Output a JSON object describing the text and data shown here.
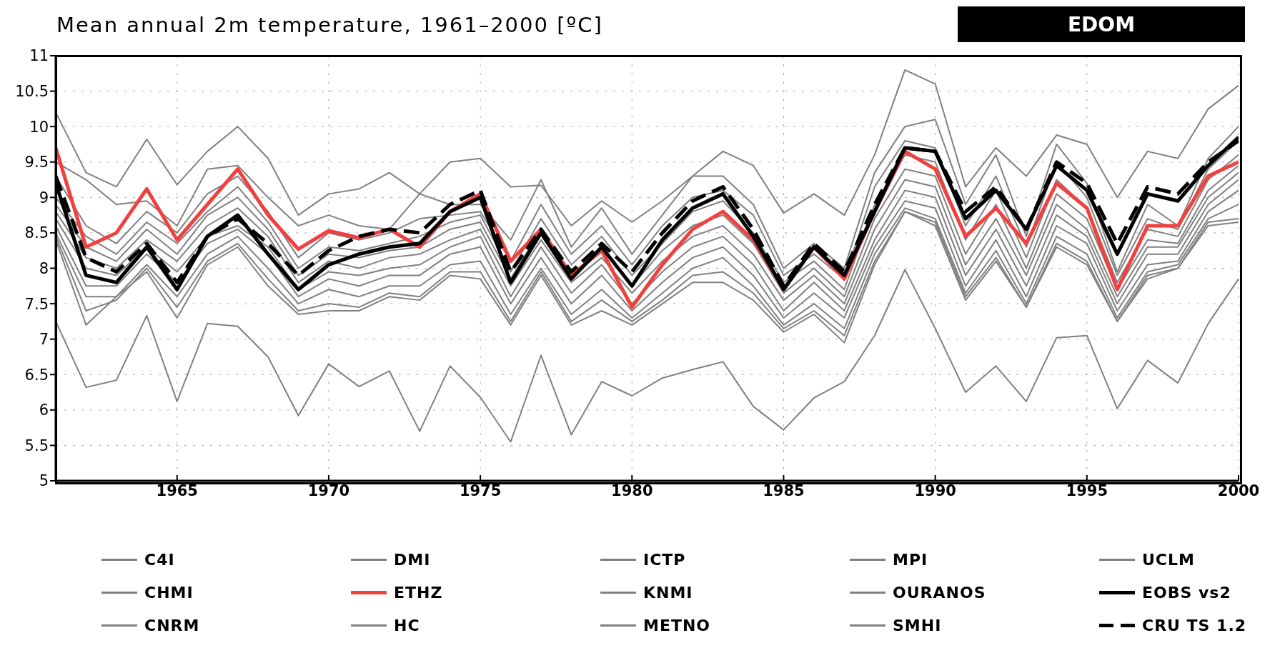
{
  "chart_data": {
    "type": "line",
    "title": "Mean annual 2m temperature, 1961–2000 [ºC]",
    "subtitle": "EDOM",
    "x": [
      1961,
      1962,
      1963,
      1964,
      1965,
      1966,
      1967,
      1968,
      1969,
      1970,
      1971,
      1972,
      1973,
      1974,
      1975,
      1976,
      1977,
      1978,
      1979,
      1980,
      1981,
      1982,
      1983,
      1984,
      1985,
      1986,
      1987,
      1988,
      1989,
      1990,
      1991,
      1992,
      1993,
      1994,
      1995,
      1996,
      1997,
      1998,
      1999,
      2000
    ],
    "xlim": [
      1961,
      2000
    ],
    "xticks": [
      1965,
      1970,
      1975,
      1980,
      1985,
      1990,
      1995,
      2000
    ],
    "ylim": [
      5,
      11
    ],
    "yticks": [
      5,
      5.5,
      6,
      6.5,
      7,
      7.5,
      8,
      8.5,
      9,
      9.5,
      10,
      10.5,
      11
    ],
    "grid": true,
    "legend": "bottom",
    "line_style": "solid",
    "marker": "none",
    "series": [
      {
        "name": "C4I",
        "color": "#808080",
        "values": [
          10.2,
          9.35,
          9.15,
          9.82,
          9.18,
          9.65,
          10.0,
          9.55,
          8.75,
          9.05,
          9.12,
          9.35,
          9.05,
          9.5,
          9.55,
          9.15,
          9.17,
          8.6,
          8.95,
          8.65,
          8.95,
          9.3,
          9.65,
          9.45,
          8.78,
          9.05,
          8.75,
          9.6,
          10.8,
          10.6,
          9.15,
          9.7,
          9.3,
          9.88,
          9.75,
          9.0,
          9.65,
          9.55,
          10.25,
          10.58
        ]
      },
      {
        "name": "DMI",
        "color": "#808080",
        "values": [
          9.5,
          9.25,
          8.9,
          8.95,
          8.6,
          9.4,
          9.45,
          9.0,
          8.6,
          8.75,
          8.6,
          8.55,
          9.05,
          8.9,
          8.9,
          8.4,
          9.25,
          8.3,
          8.85,
          8.2,
          8.75,
          9.3,
          9.3,
          8.9,
          8.0,
          8.35,
          8.0,
          9.35,
          10.0,
          10.1,
          8.9,
          9.6,
          8.45,
          9.75,
          9.2,
          7.95,
          8.9,
          8.6,
          9.55,
          10.0
        ]
      },
      {
        "name": "ICTP",
        "color": "#808080",
        "values": [
          9.3,
          8.6,
          8.35,
          8.8,
          8.5,
          9.05,
          9.3,
          8.8,
          8.15,
          8.5,
          8.4,
          8.5,
          8.7,
          8.75,
          8.8,
          8.1,
          8.9,
          8.2,
          8.6,
          8.05,
          8.6,
          9.0,
          9.1,
          8.75,
          7.9,
          8.2,
          7.85,
          9.15,
          9.8,
          9.7,
          8.6,
          9.3,
          8.3,
          9.5,
          9.0,
          7.9,
          8.7,
          8.55,
          9.4,
          9.8
        ]
      },
      {
        "name": "MPI",
        "color": "#808080",
        "values": [
          9.0,
          8.45,
          8.2,
          8.65,
          8.35,
          8.8,
          9.15,
          8.65,
          8.0,
          8.3,
          8.25,
          8.35,
          8.45,
          8.65,
          8.75,
          7.95,
          8.7,
          8.05,
          8.45,
          7.9,
          8.35,
          8.8,
          8.95,
          8.5,
          7.8,
          8.1,
          7.7,
          8.9,
          9.6,
          9.5,
          8.4,
          9.1,
          8.15,
          9.25,
          8.85,
          7.8,
          8.55,
          8.45,
          9.25,
          9.6
        ]
      },
      {
        "name": "UCLM",
        "color": "#808080",
        "values": [
          8.9,
          8.3,
          8.1,
          8.55,
          8.2,
          8.75,
          9.0,
          8.55,
          7.9,
          8.2,
          8.15,
          8.25,
          8.3,
          8.55,
          8.65,
          7.85,
          8.55,
          7.9,
          8.3,
          7.75,
          8.25,
          8.6,
          8.75,
          8.35,
          7.65,
          8.0,
          7.6,
          8.7,
          9.4,
          9.3,
          8.2,
          8.9,
          8.0,
          9.05,
          8.7,
          7.7,
          8.4,
          8.35,
          9.1,
          9.45
        ]
      },
      {
        "name": "CHMI",
        "color": "#808080",
        "values": [
          8.8,
          8.15,
          8.0,
          8.4,
          8.1,
          8.6,
          8.85,
          8.45,
          7.8,
          8.1,
          8.0,
          8.15,
          8.2,
          8.4,
          8.55,
          7.75,
          8.4,
          7.8,
          8.15,
          7.65,
          8.1,
          8.45,
          8.6,
          8.2,
          7.55,
          7.9,
          7.5,
          8.55,
          9.25,
          9.15,
          8.05,
          8.7,
          7.9,
          8.9,
          8.55,
          7.6,
          8.3,
          8.3,
          9.0,
          9.35
        ]
      },
      {
        "name": "ETHZ",
        "color": "#f04040",
        "values": [
          9.7,
          8.3,
          8.5,
          9.12,
          8.4,
          8.9,
          9.4,
          8.75,
          8.27,
          8.53,
          8.43,
          8.55,
          8.3,
          8.8,
          9.05,
          8.1,
          8.55,
          7.9,
          8.25,
          7.45,
          8.05,
          8.55,
          8.8,
          8.4,
          7.7,
          8.3,
          7.85,
          8.8,
          9.65,
          9.4,
          8.45,
          8.85,
          8.35,
          9.2,
          8.85,
          7.7,
          8.6,
          8.6,
          9.3,
          9.5
        ]
      },
      {
        "name": "KNMI",
        "color": "#808080",
        "values": [
          8.7,
          8.0,
          7.9,
          8.3,
          7.95,
          8.45,
          8.6,
          8.3,
          7.7,
          7.95,
          7.9,
          8.0,
          8.05,
          8.3,
          8.45,
          7.6,
          8.3,
          7.65,
          8.05,
          7.5,
          7.95,
          8.3,
          8.45,
          8.05,
          7.4,
          7.8,
          7.4,
          8.4,
          9.1,
          9.0,
          7.9,
          8.55,
          7.75,
          8.75,
          8.45,
          7.5,
          8.2,
          8.2,
          8.9,
          9.25
        ]
      },
      {
        "name": "OURANOS",
        "color": "#808080",
        "values": [
          8.6,
          7.75,
          7.75,
          8.2,
          7.8,
          8.35,
          8.55,
          8.2,
          7.6,
          7.85,
          7.75,
          7.9,
          7.9,
          8.2,
          8.3,
          7.5,
          8.15,
          7.5,
          7.9,
          7.4,
          7.8,
          8.15,
          8.3,
          7.9,
          7.3,
          7.65,
          7.3,
          8.3,
          8.95,
          8.85,
          7.75,
          8.4,
          7.6,
          8.6,
          8.35,
          7.4,
          8.05,
          8.1,
          8.8,
          9.1
        ]
      },
      {
        "name": "EOBS vs2",
        "color": "#000000",
        "values": [
          9.2,
          7.9,
          7.8,
          8.3,
          7.7,
          8.45,
          8.75,
          8.2,
          7.7,
          8.05,
          8.2,
          8.3,
          8.35,
          8.8,
          9.0,
          7.8,
          8.5,
          7.85,
          8.3,
          7.75,
          8.4,
          8.85,
          9.05,
          8.45,
          7.7,
          8.3,
          7.9,
          8.8,
          9.7,
          9.65,
          8.7,
          9.1,
          8.55,
          9.45,
          9.1,
          8.2,
          9.05,
          8.95,
          9.45,
          9.85
        ]
      },
      {
        "name": "CNRM",
        "color": "#808080",
        "values": [
          8.5,
          7.6,
          7.6,
          8.05,
          7.6,
          8.2,
          8.45,
          8.0,
          7.5,
          7.7,
          7.6,
          7.75,
          7.75,
          8.05,
          8.1,
          7.35,
          8.0,
          7.35,
          7.7,
          7.3,
          7.65,
          8.0,
          8.15,
          7.75,
          7.2,
          7.5,
          7.15,
          8.2,
          8.85,
          8.7,
          7.65,
          8.25,
          7.5,
          8.45,
          8.2,
          7.3,
          7.95,
          8.05,
          8.7,
          8.9
        ]
      },
      {
        "name": "HC",
        "color": "#808080",
        "values": [
          8.45,
          7.4,
          7.55,
          8.0,
          7.45,
          8.1,
          8.35,
          7.85,
          7.4,
          7.5,
          7.45,
          7.65,
          7.6,
          7.95,
          7.95,
          7.25,
          7.95,
          7.25,
          7.55,
          7.25,
          7.55,
          7.9,
          7.95,
          7.65,
          7.15,
          7.4,
          7.05,
          8.1,
          8.8,
          8.65,
          7.6,
          8.15,
          7.45,
          8.35,
          8.1,
          7.25,
          7.9,
          8.0,
          8.65,
          8.7
        ]
      },
      {
        "name": "METNO",
        "color": "#808080",
        "values": [
          7.25,
          6.32,
          6.42,
          7.33,
          6.12,
          7.22,
          7.18,
          6.75,
          5.92,
          6.65,
          6.33,
          6.55,
          5.7,
          6.62,
          6.18,
          5.55,
          6.77,
          5.65,
          6.4,
          6.2,
          6.45,
          6.57,
          6.68,
          6.05,
          5.72,
          6.17,
          6.4,
          7.05,
          7.98,
          7.15,
          6.25,
          6.62,
          6.12,
          7.02,
          7.05,
          6.02,
          6.7,
          6.38,
          7.22,
          7.85
        ]
      },
      {
        "name": "SMHI",
        "color": "#808080",
        "values": [
          8.4,
          7.2,
          7.6,
          7.95,
          7.3,
          8.05,
          8.3,
          7.75,
          7.35,
          7.4,
          7.4,
          7.6,
          7.55,
          7.9,
          7.85,
          7.2,
          7.9,
          7.2,
          7.4,
          7.2,
          7.5,
          7.8,
          7.8,
          7.55,
          7.1,
          7.35,
          6.95,
          8.05,
          8.8,
          8.6,
          7.55,
          8.1,
          7.45,
          8.3,
          8.05,
          7.25,
          7.85,
          8.0,
          8.6,
          8.65
        ]
      },
      {
        "name": "CRU TS 1.2",
        "color": "#000000",
        "line_style": "dashed",
        "values": [
          9.3,
          8.15,
          7.95,
          8.35,
          7.8,
          8.45,
          8.7,
          8.35,
          7.9,
          8.25,
          8.45,
          8.55,
          8.5,
          8.9,
          9.1,
          7.95,
          8.55,
          7.95,
          8.35,
          7.95,
          8.5,
          8.95,
          9.15,
          8.55,
          7.75,
          8.35,
          7.95,
          8.9,
          9.7,
          9.65,
          8.8,
          9.15,
          8.55,
          9.5,
          9.2,
          8.35,
          9.15,
          9.05,
          9.5,
          9.8
        ]
      }
    ]
  }
}
